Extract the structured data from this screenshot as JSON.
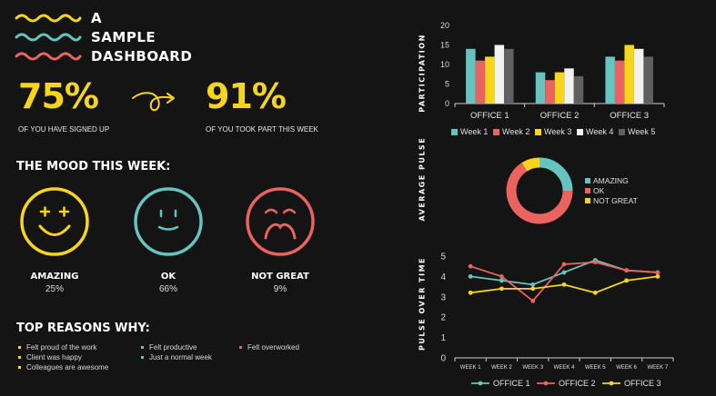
{
  "header": {
    "title_lines": [
      "A",
      "SAMPLE",
      "DASHBOARD"
    ]
  },
  "colors": {
    "yellow": "#f7d51d",
    "teal": "#66c4c0",
    "coral": "#ea6360",
    "white": "#f2f2f2",
    "gray": "#606060",
    "background": "#141414"
  },
  "stats": {
    "signed_up_value": "75%",
    "signed_up_caption": "OF YOU HAVE SIGNED UP",
    "took_part_value": "91%",
    "took_part_caption": "OF YOU TOOK PART THIS WEEK",
    "arrow_icon": "curly-arrow-icon"
  },
  "mood": {
    "heading": "THE MOOD THIS WEEK:",
    "items": [
      {
        "label": "AMAZING",
        "percent": "25%",
        "icon": "happy-face-icon"
      },
      {
        "label": "OK",
        "percent": "66%",
        "icon": "neutral-face-icon"
      },
      {
        "label": "NOT GREAT",
        "percent": "9%",
        "icon": "sad-face-icon"
      }
    ]
  },
  "reasons": {
    "heading": "TOP REASONS WHY:",
    "columns": [
      [
        "Felt proud of the work",
        "Client was happy",
        "Colleagues are awesome"
      ],
      [
        "Felt productive",
        "Just a normal week"
      ],
      [
        "Felt overworked"
      ]
    ]
  },
  "chart_data": [
    {
      "type": "bar",
      "ylabel": "PARTICIPATION",
      "categories": [
        "OFFICE 1",
        "OFFICE 2",
        "OFFICE 3"
      ],
      "ylim": [
        0,
        20
      ],
      "yticks": [
        0,
        5,
        10,
        15,
        20
      ],
      "series": [
        {
          "name": "Week 1",
          "color": "#66c4c0",
          "values": [
            14,
            8,
            12
          ]
        },
        {
          "name": "Week 2",
          "color": "#ea6360",
          "values": [
            11,
            6,
            11
          ]
        },
        {
          "name": "Week 3",
          "color": "#f7d51d",
          "values": [
            12,
            8,
            15
          ]
        },
        {
          "name": "Week 4",
          "color": "#f2f2f2",
          "values": [
            15,
            9,
            14
          ]
        },
        {
          "name": "Week 5",
          "color": "#606060",
          "values": [
            14,
            7,
            12
          ]
        }
      ],
      "legend": "bottom"
    },
    {
      "type": "pie",
      "title": "AVERAGE PULSE",
      "labels": [
        "AMAZING",
        "OK",
        "NOT GREAT"
      ],
      "values": [
        25,
        66,
        9
      ],
      "colors": [
        "#66c4c0",
        "#ea6360",
        "#f7d51d"
      ],
      "legend": "right"
    },
    {
      "type": "line",
      "ylabel": "PULSE OVER TIME",
      "x": [
        "WEEK 1",
        "WEEK 2",
        "WEEK 3",
        "WEEK 4",
        "WEEK 5",
        "WEEK 6",
        "WEEK 7"
      ],
      "ylim": [
        0,
        5
      ],
      "yticks": [
        0,
        1,
        2,
        3,
        4,
        5
      ],
      "series": [
        {
          "name": "OFFICE 1",
          "color": "#66c4c0",
          "values": [
            4.0,
            3.8,
            3.6,
            4.2,
            4.8,
            4.3,
            4.2
          ]
        },
        {
          "name": "OFFICE 2",
          "color": "#ea6360",
          "values": [
            4.5,
            4.0,
            2.8,
            4.6,
            4.7,
            4.3,
            4.2
          ]
        },
        {
          "name": "OFFICE 3",
          "color": "#f7d51d",
          "values": [
            3.2,
            3.4,
            3.4,
            3.6,
            3.2,
            3.8,
            4.0
          ]
        }
      ],
      "legend": "bottom"
    }
  ]
}
